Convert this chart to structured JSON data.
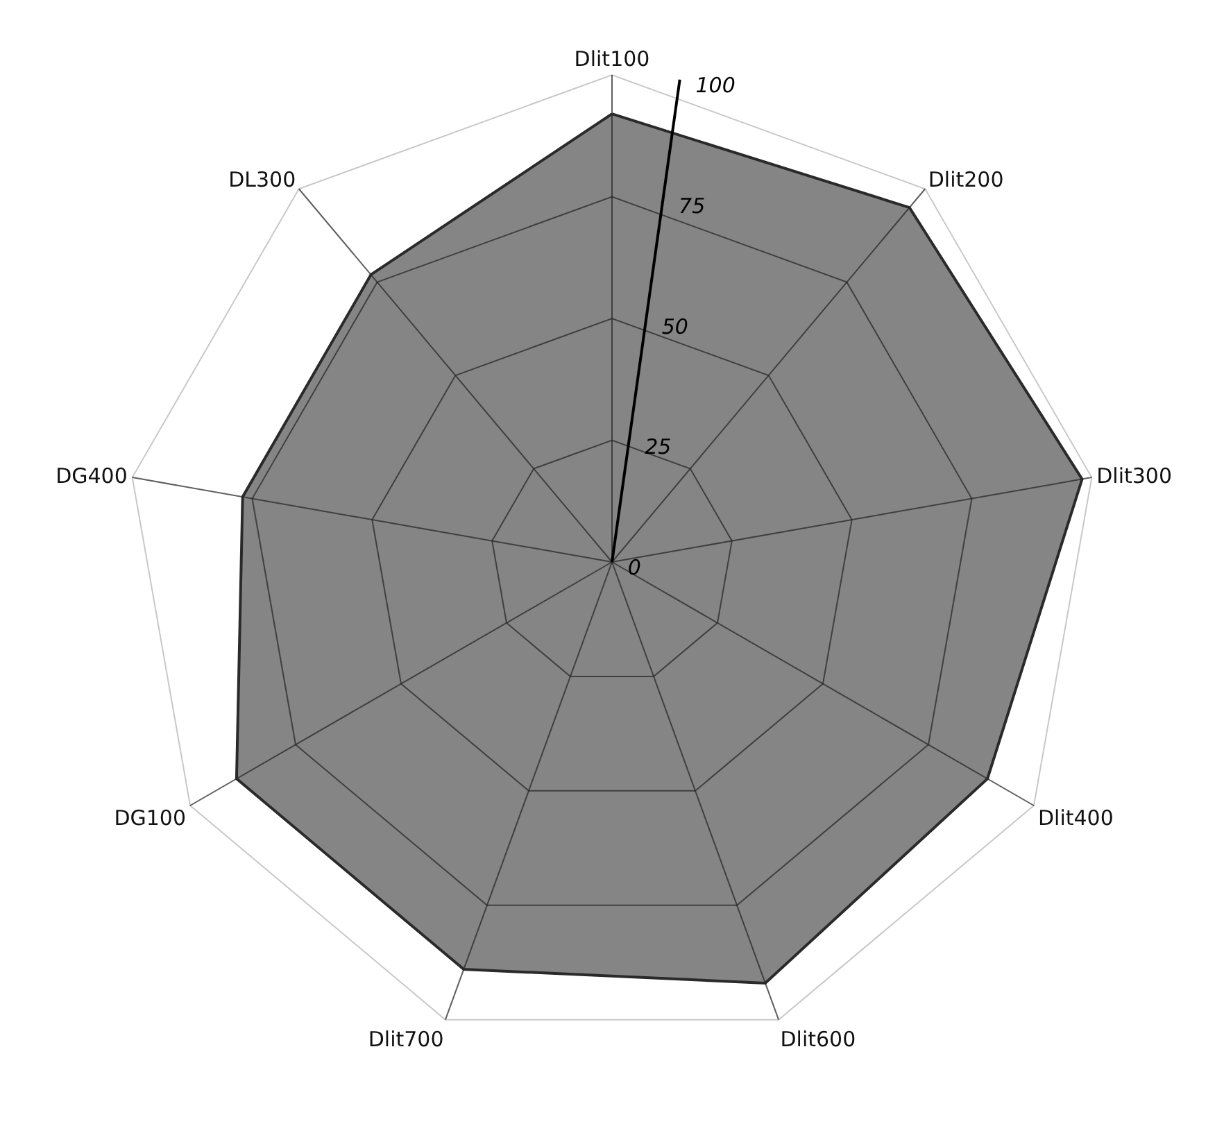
{
  "chart_data": {
    "type": "radar",
    "categories": [
      "Dlit100",
      "Dlit200",
      "Dlit300",
      "Dlit400",
      "Dlit600",
      "Dlit700",
      "DG100",
      "DG400",
      "DL300"
    ],
    "series": [
      {
        "color": "#858585",
        "values": [
          92,
          95,
          98,
          89,
          92,
          89,
          89,
          77,
          77
        ]
      }
    ],
    "ylim": [
      0,
      100
    ],
    "yticks": [
      0,
      25,
      50,
      75,
      100
    ],
    "grid": true
  }
}
